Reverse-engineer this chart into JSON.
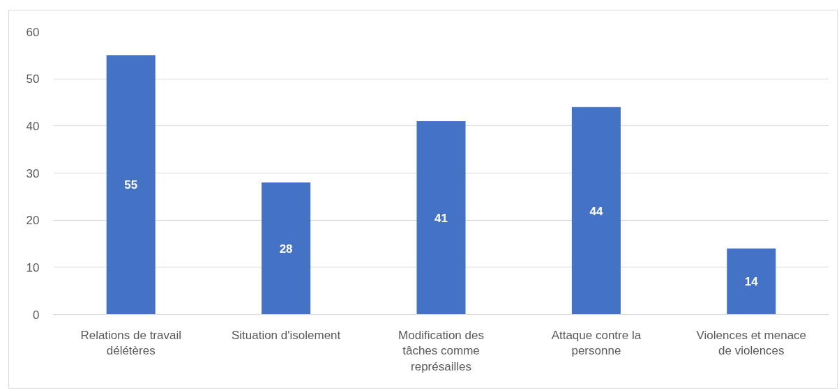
{
  "chart_data": {
    "type": "bar",
    "categories": [
      "Relations de travail délétères",
      "Situation d'isolement",
      "Modification des tâches comme représailles",
      "Attaque contre la personne",
      "Violences et menace de violences"
    ],
    "values": [
      55,
      28,
      41,
      44,
      14
    ],
    "color": "#4472c4",
    "ylim": [
      0,
      60
    ],
    "yticks": [
      0,
      10,
      20,
      30,
      40,
      50,
      60
    ],
    "grid": "y",
    "data_labels": true
  }
}
